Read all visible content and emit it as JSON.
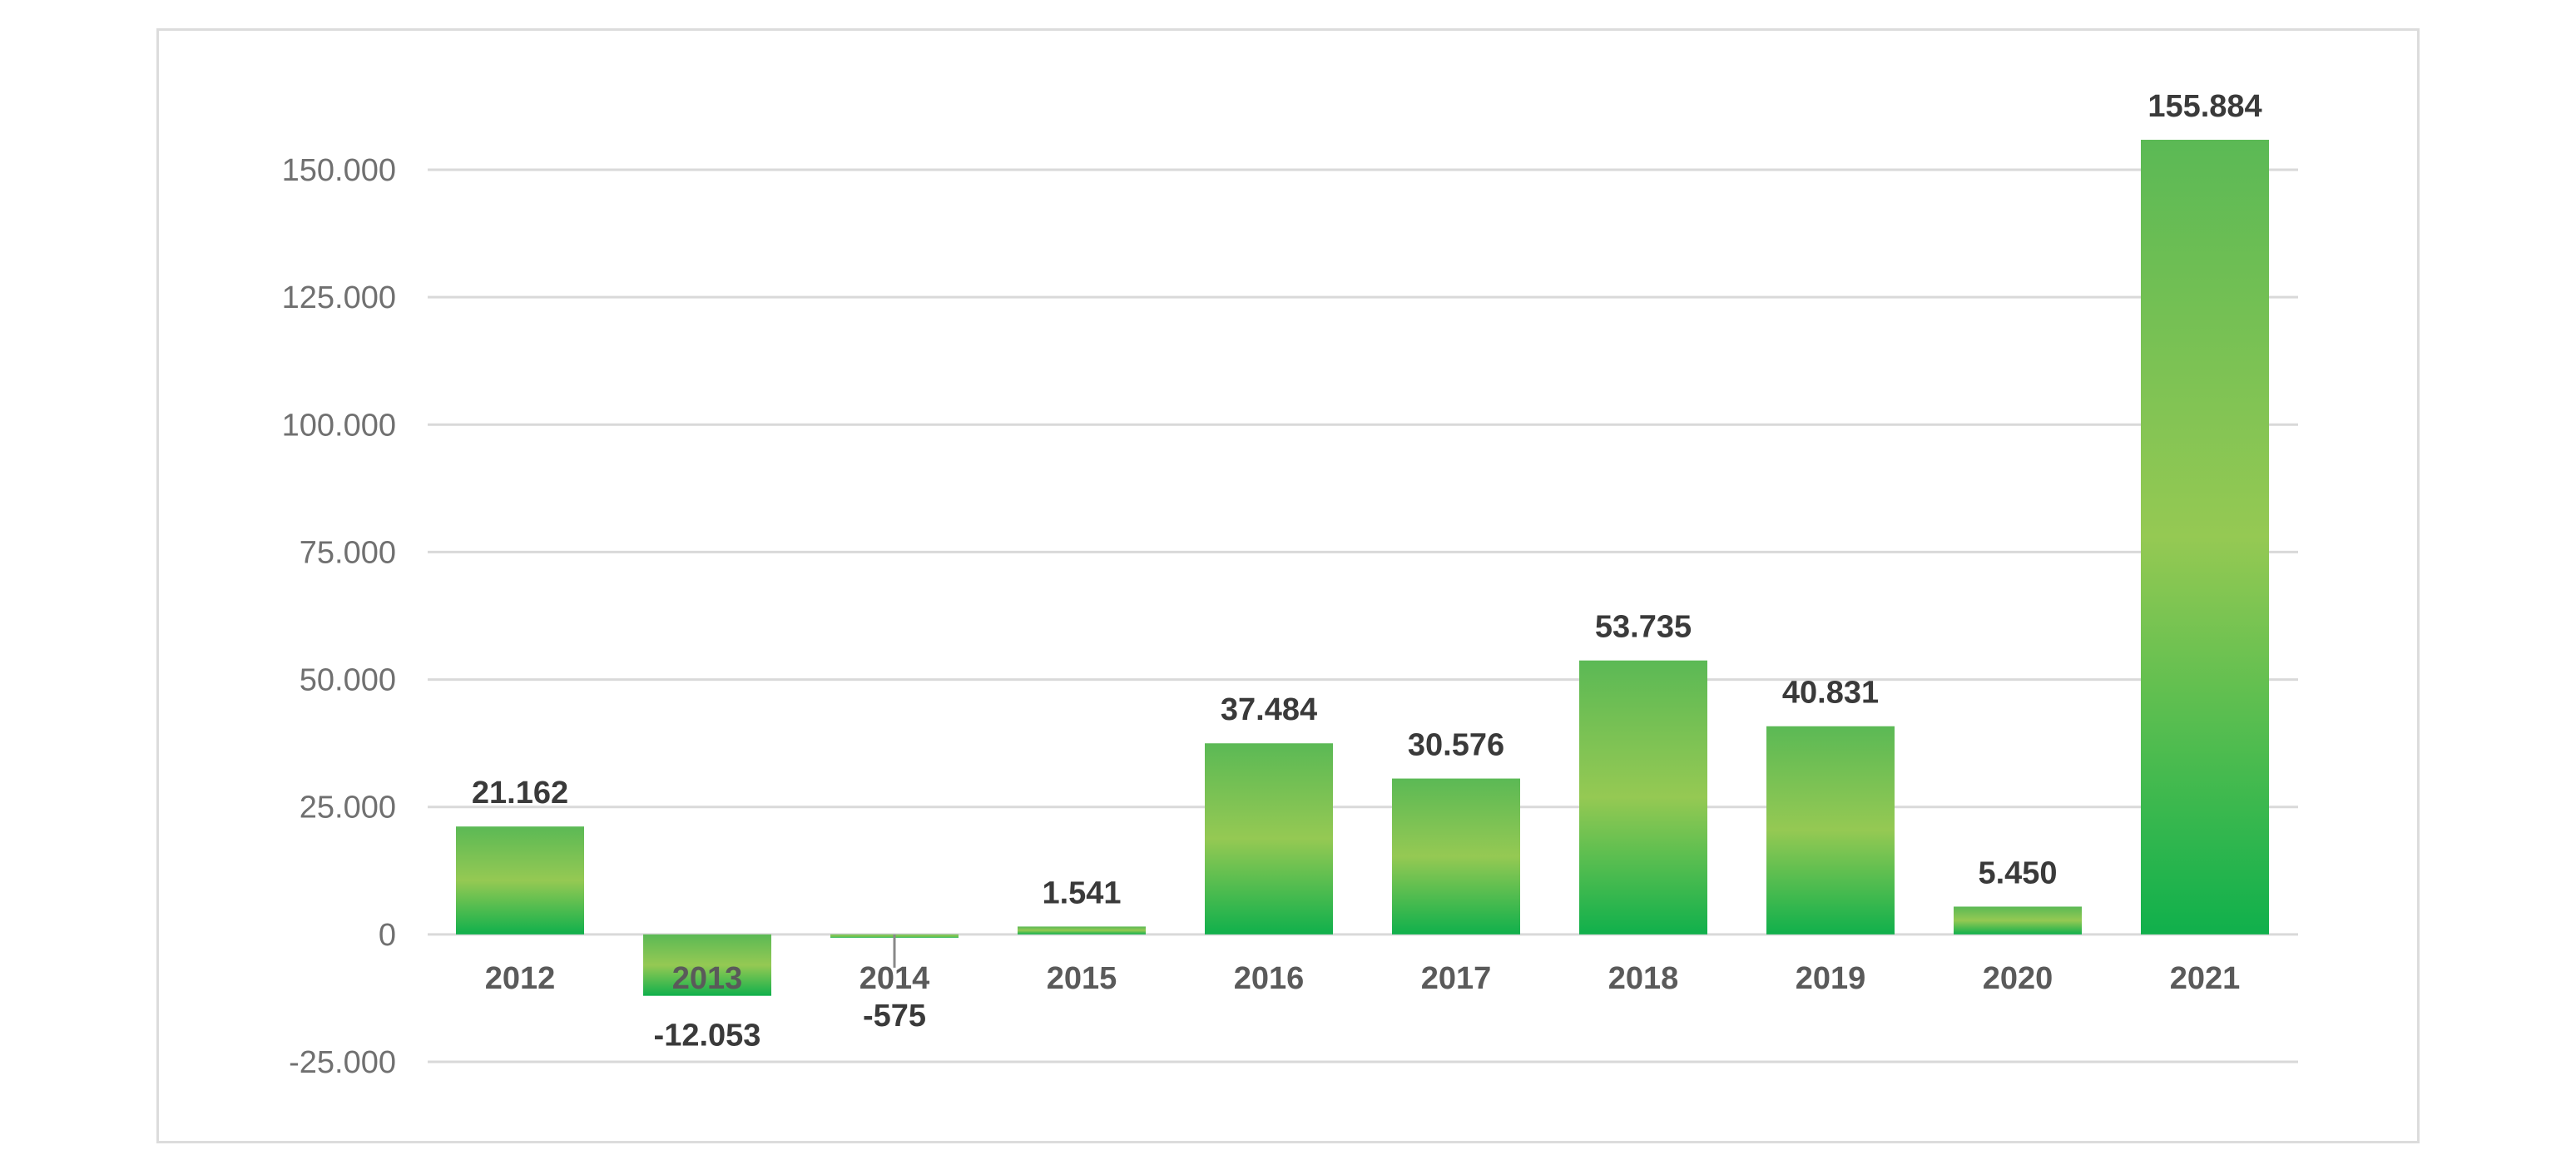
{
  "chart_data": {
    "type": "bar",
    "categories": [
      "2012",
      "2013",
      "2014",
      "2015",
      "2016",
      "2017",
      "2018",
      "2019",
      "2020",
      "2021"
    ],
    "values": [
      21162,
      -12053,
      -575,
      1541,
      37484,
      30576,
      53735,
      40831,
      5450,
      155884
    ],
    "value_labels": [
      "21.162",
      "-12.053",
      "-575",
      "1.541",
      "37.484",
      "30.576",
      "53.735",
      "40.831",
      "5.450",
      "155.884"
    ],
    "ylim": [
      -25000,
      150000
    ],
    "yticks": [
      -25000,
      0,
      25000,
      50000,
      75000,
      100000,
      125000,
      150000
    ],
    "ytick_labels": [
      "-25.000",
      "0",
      "25.000",
      "50.000",
      "75.000",
      "100.000",
      "125.000",
      "150.000"
    ],
    "grid": true,
    "legend": "none",
    "colors": {
      "bar_edge": "#10b04c",
      "bar_mid": "#95c953",
      "grid": "#d9d9d9"
    }
  }
}
